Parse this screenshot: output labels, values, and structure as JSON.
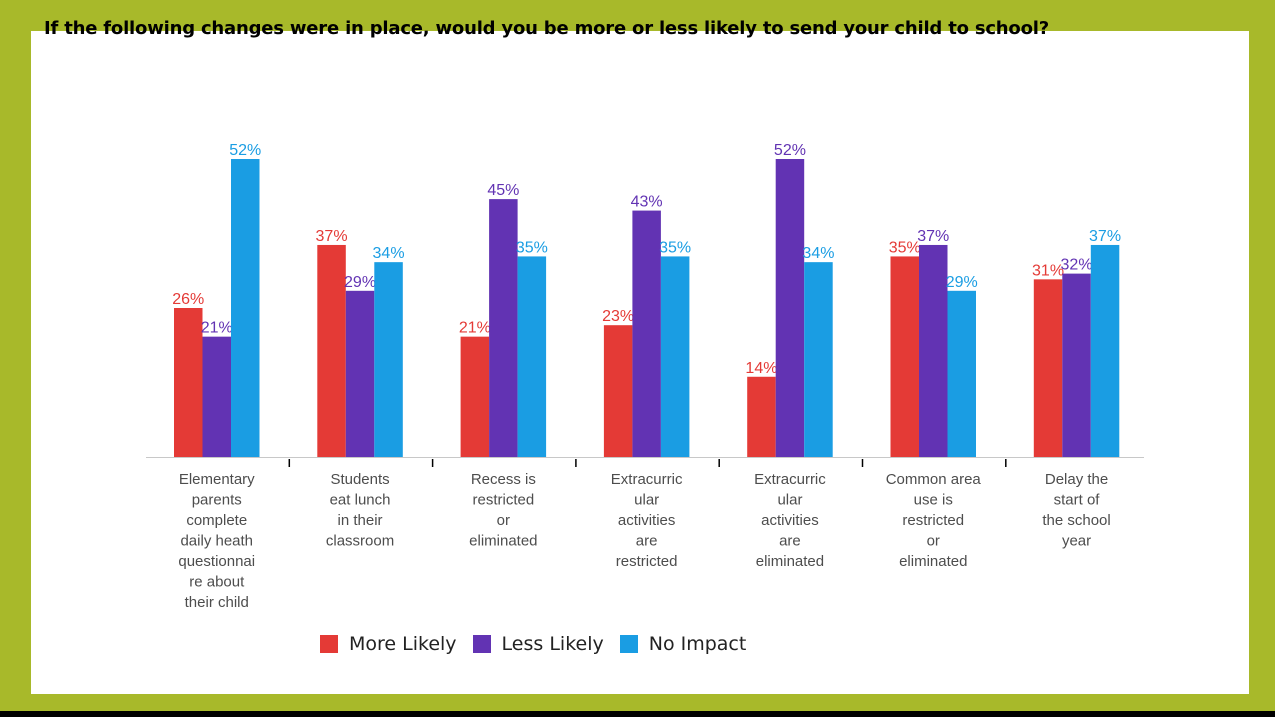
{
  "chart_data": {
    "type": "bar",
    "title": "If the following changes were in place, would you be more or less likely to send your child to school?",
    "categories": [
      [
        "Elementary",
        "parents",
        "complete",
        "daily heath",
        "questionnai",
        "re about",
        "their child"
      ],
      [
        "Students",
        "eat lunch",
        "in their",
        "classroom"
      ],
      [
        "Recess is",
        "restricted",
        "or",
        "eliminated"
      ],
      [
        "Extracurric",
        "ular",
        "activities",
        "are",
        "restricted"
      ],
      [
        "Extracurric",
        "ular",
        "activities",
        "are",
        "eliminated"
      ],
      [
        "Common area",
        "use is",
        "restricted",
        "or",
        "eliminated"
      ],
      [
        "Delay the",
        "start of",
        "the school",
        "year"
      ]
    ],
    "series": [
      {
        "name": "More Likely",
        "color": "#e43a36",
        "values": [
          26,
          37,
          21,
          23,
          14,
          35,
          31
        ],
        "labels": [
          "26%",
          "37%",
          "21%",
          "23%",
          "14%",
          "35%",
          "31%"
        ]
      },
      {
        "name": "Less Likely",
        "color": "#6233b3",
        "values": [
          21,
          29,
          45,
          43,
          52,
          37,
          32
        ],
        "labels": [
          "21%",
          "29%",
          "45%",
          "43%",
          "52%",
          "37%",
          "32%"
        ]
      },
      {
        "name": "No Impact",
        "color": "#1a9de3",
        "values": [
          52,
          34,
          35,
          35,
          34,
          29,
          37
        ],
        "labels": [
          "52%",
          "34%",
          "35%",
          "35%",
          "34%",
          "29%",
          "37%"
        ]
      }
    ],
    "ylim": [
      0,
      52
    ],
    "legend_position": "bottom",
    "grid": false
  }
}
